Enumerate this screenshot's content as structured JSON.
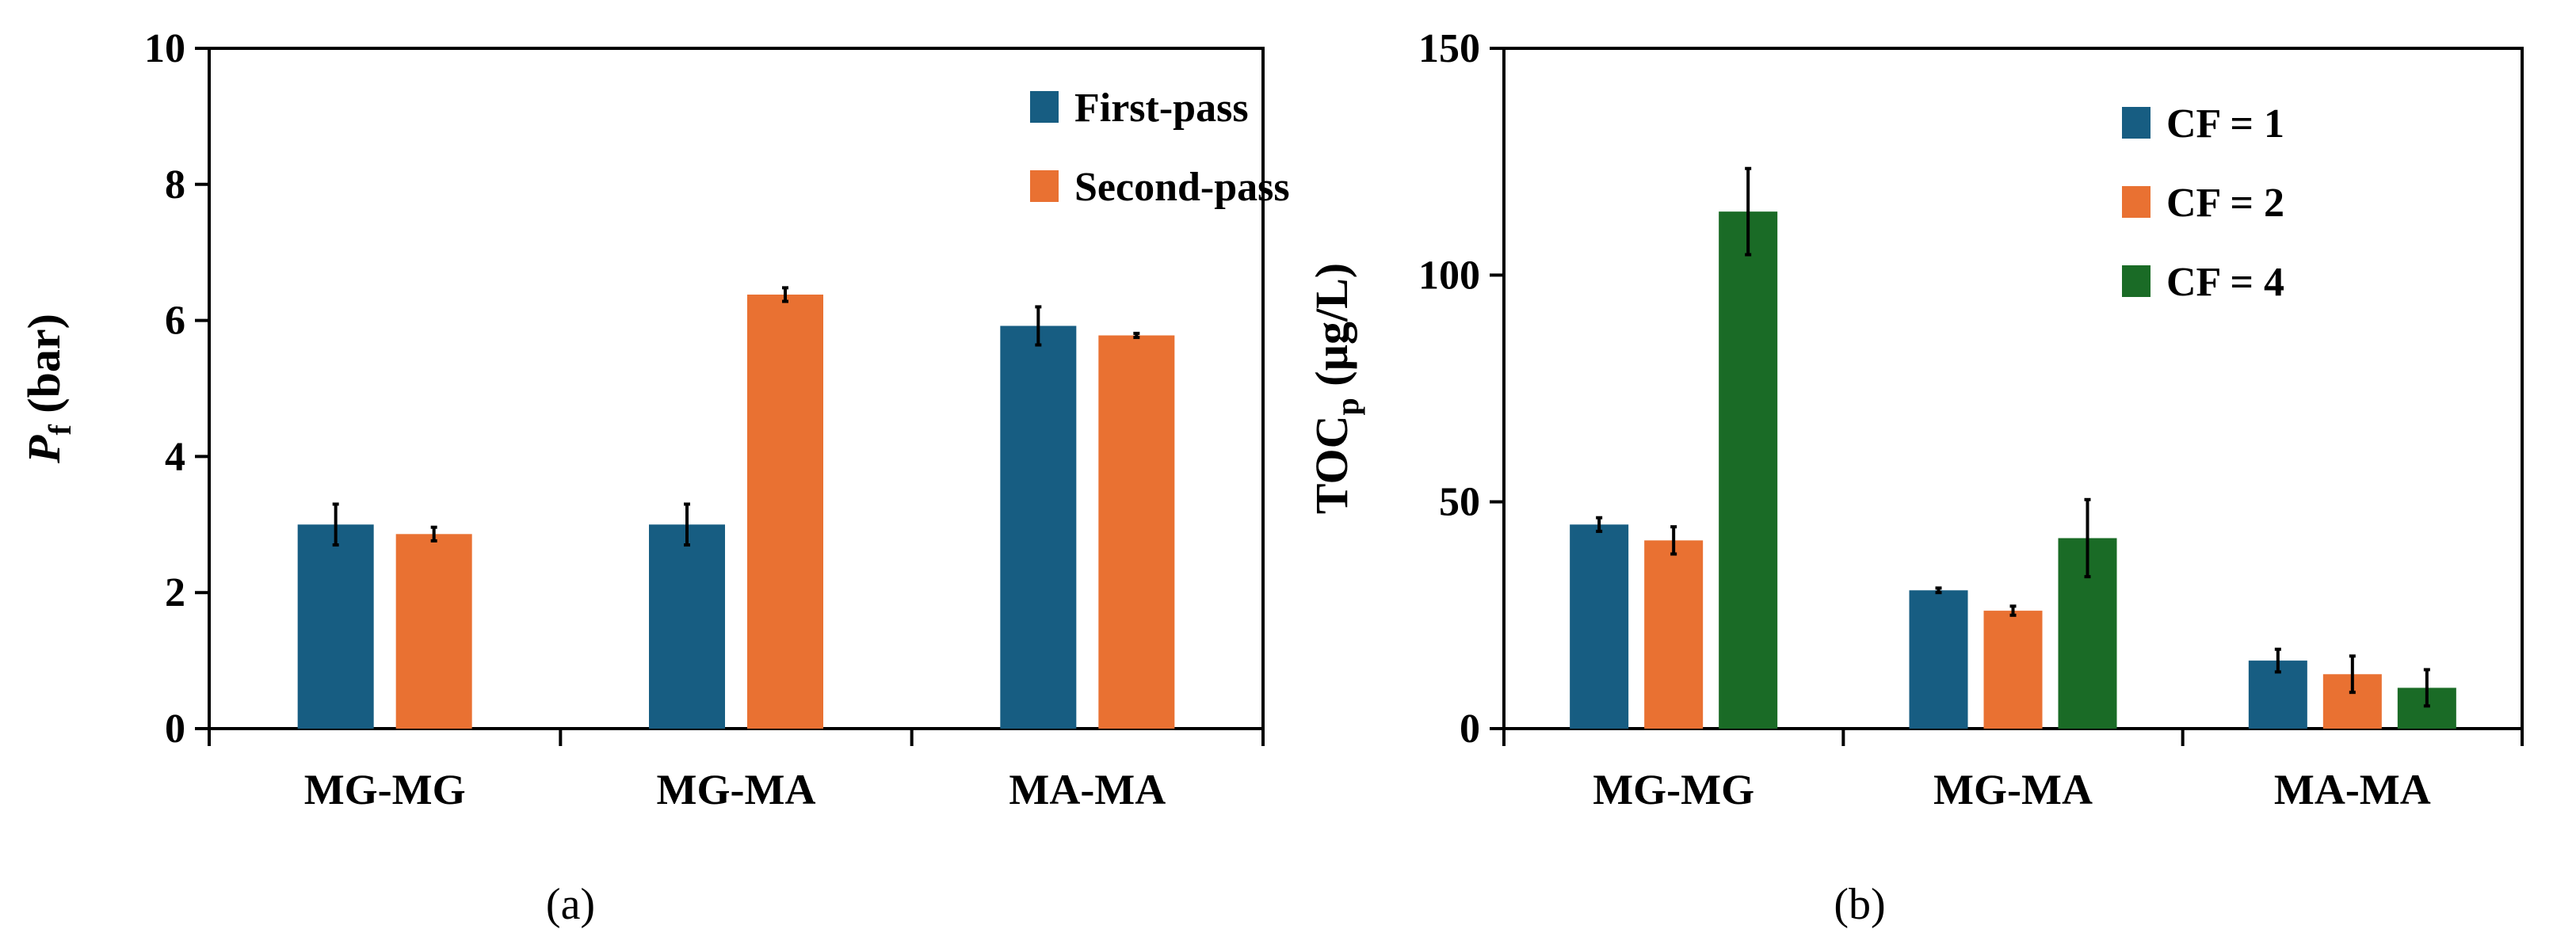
{
  "chart_data": [
    {
      "type": "bar",
      "panel_label": "(a)",
      "ylabel_main": "P",
      "ylabel_sub": "f",
      "ylabel_rest": " (bar)",
      "categories": [
        "MG-MG",
        "MG-MA",
        "MA-MA"
      ],
      "ylim": [
        0,
        10
      ],
      "yticks": [
        0,
        2,
        4,
        6,
        8,
        10
      ],
      "legend_position": "top-right",
      "series": [
        {
          "name": "First-pass",
          "color": "#175d82",
          "values": [
            3.0,
            3.0,
            5.92
          ],
          "errors": [
            0.3,
            0.3,
            0.28
          ]
        },
        {
          "name": "Second-pass",
          "color": "#e97132",
          "values": [
            2.86,
            6.38,
            5.78
          ],
          "errors": [
            0.1,
            0.1,
            0.03
          ]
        }
      ]
    },
    {
      "type": "bar",
      "panel_label": "(b)",
      "ylabel_main": "TOC",
      "ylabel_sub": "p",
      "ylabel_rest": " (µg/L)",
      "categories": [
        "MG-MG",
        "MG-MA",
        "MA-MA"
      ],
      "ylim": [
        0,
        150
      ],
      "yticks": [
        0,
        50,
        100,
        150
      ],
      "legend_position": "top-right",
      "series": [
        {
          "name": "CF = 1",
          "color": "#175d82",
          "values": [
            45,
            30.5,
            15
          ],
          "errors": [
            1.5,
            0.5,
            2.5
          ]
        },
        {
          "name": "CF = 2",
          "color": "#e97132",
          "values": [
            41.5,
            26,
            12
          ],
          "errors": [
            3,
            1,
            4
          ]
        },
        {
          "name": "CF = 4",
          "color": "#1a6b26",
          "values": [
            114,
            42,
            9
          ],
          "errors": [
            9.5,
            8.5,
            4
          ]
        }
      ]
    }
  ]
}
